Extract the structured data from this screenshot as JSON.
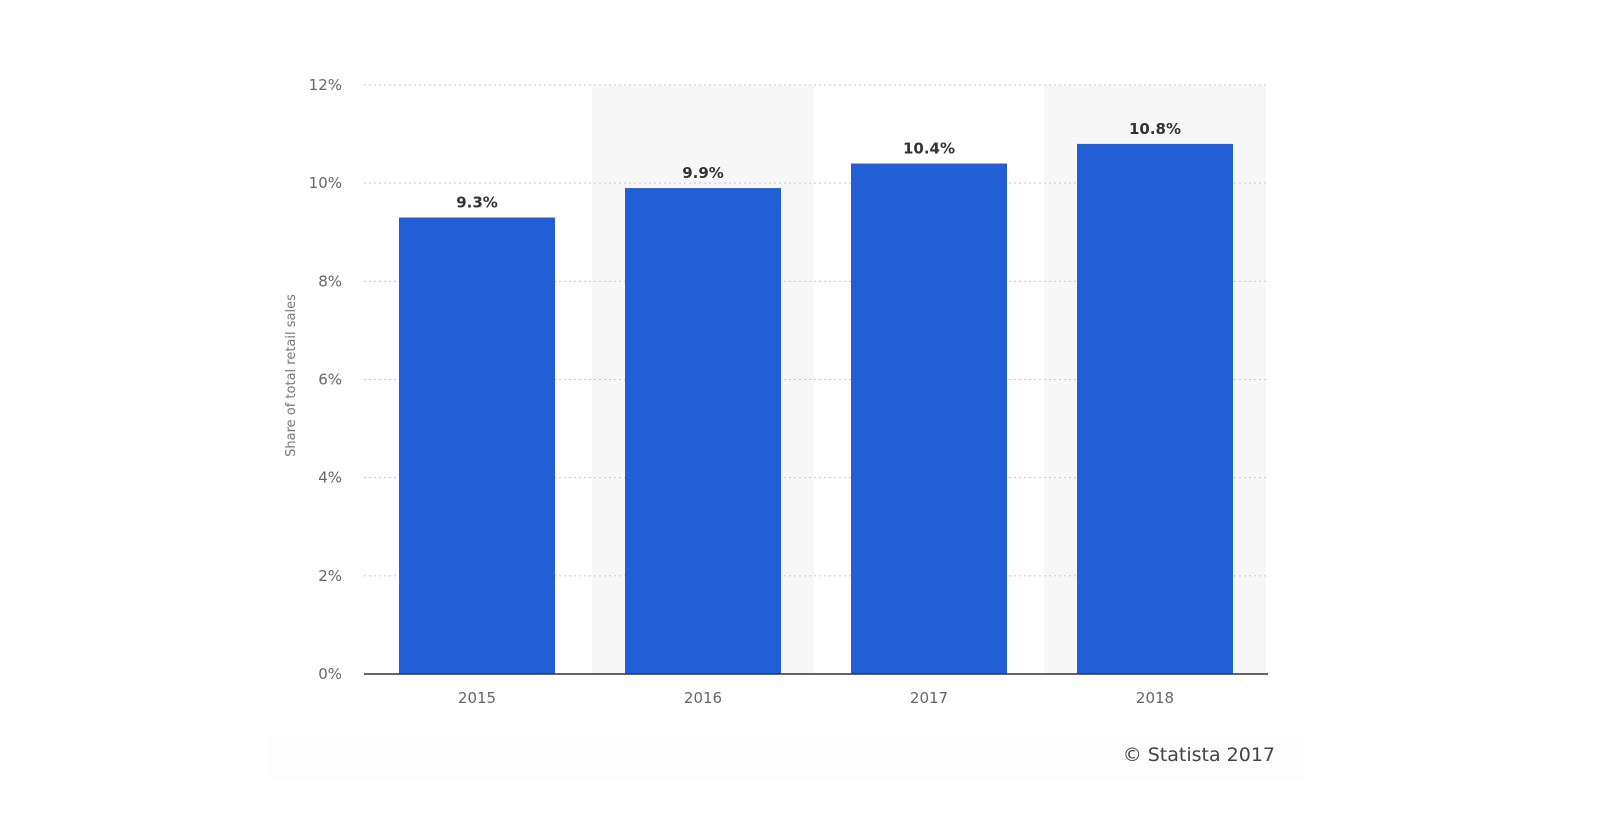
{
  "chart_data": {
    "type": "bar",
    "categories": [
      "2015",
      "2016",
      "2017",
      "2018"
    ],
    "values": [
      9.3,
      9.9,
      10.4,
      10.8
    ],
    "data_labels": [
      "9.3%",
      "9.9%",
      "10.4%",
      "10.8%"
    ],
    "title": "",
    "xlabel": "",
    "ylabel": "Share of total retail sales",
    "ylim": [
      0,
      12
    ],
    "yticks": [
      0,
      2,
      4,
      6,
      8,
      10,
      12
    ],
    "ytick_labels": [
      "0%",
      "2%",
      "4%",
      "6%",
      "8%",
      "10%",
      "12%"
    ],
    "grid": true,
    "bar_color": "#225ed6",
    "alternate_band_color": "#f7f7f7"
  },
  "credit": "© Statista 2017"
}
